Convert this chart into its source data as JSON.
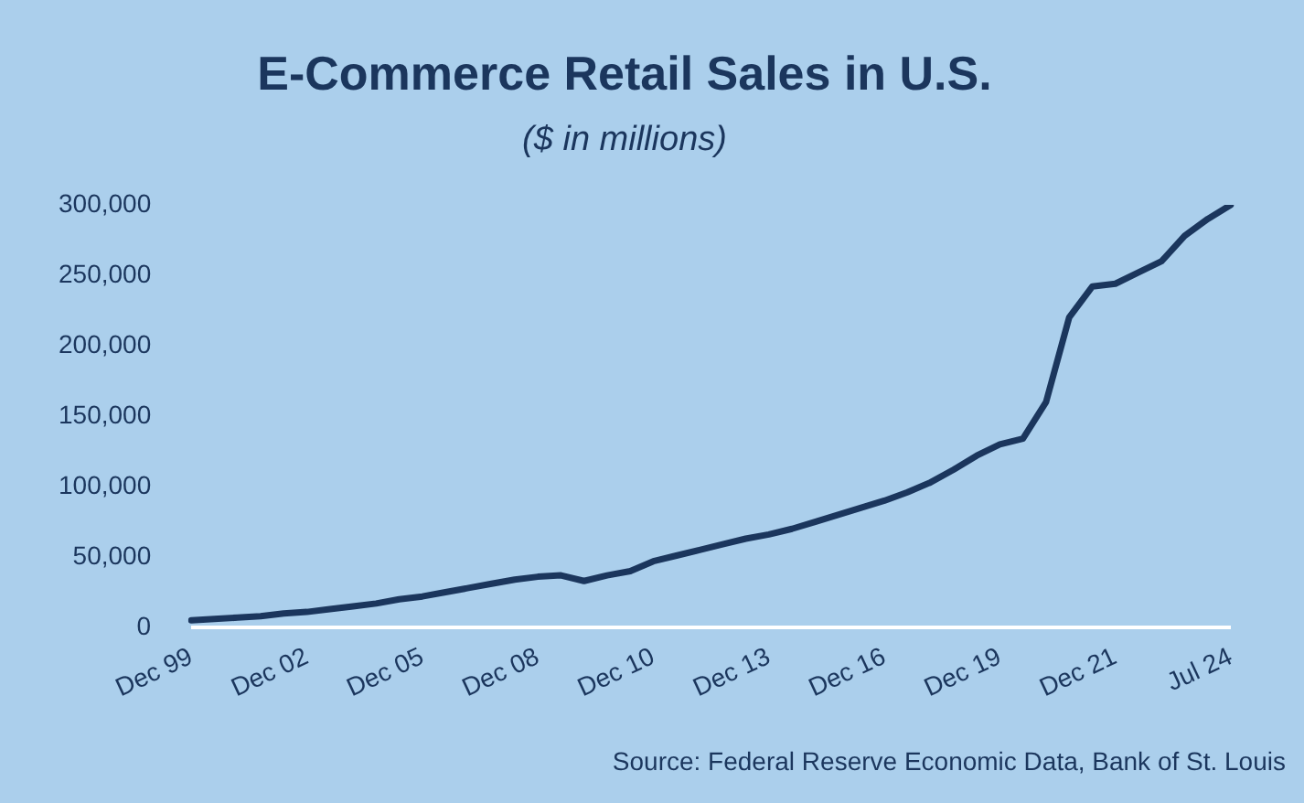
{
  "chart_data": {
    "type": "line",
    "title": "E-Commerce Retail Sales in U.S.",
    "subtitle": "($ in millions)",
    "categories": [
      "Dec 99",
      null,
      null,
      null,
      null,
      "Dec 02",
      null,
      null,
      null,
      null,
      "Dec 05",
      null,
      null,
      null,
      null,
      "Dec 08",
      null,
      null,
      null,
      null,
      "Dec 10",
      null,
      null,
      null,
      null,
      "Dec 13",
      null,
      null,
      null,
      null,
      "Dec 16",
      null,
      null,
      null,
      null,
      "Dec 19",
      null,
      null,
      null,
      null,
      "Dec 21",
      null,
      null,
      null,
      null,
      "Jul 24"
    ],
    "series": [
      {
        "color": "#1b365d",
        "values": [
          5000,
          6000,
          7000,
          8000,
          10000,
          11000,
          13000,
          15000,
          17000,
          20000,
          22000,
          25000,
          28000,
          31000,
          34000,
          36000,
          37000,
          33000,
          37000,
          40000,
          47000,
          51000,
          55000,
          59000,
          63000,
          66000,
          70000,
          75000,
          80000,
          85000,
          90000,
          96000,
          103000,
          112000,
          122000,
          130000,
          134000,
          160000,
          220000,
          242000,
          244000,
          252000,
          260000,
          278000,
          290000,
          300000
        ]
      }
    ],
    "ylim": [
      0,
      300000
    ],
    "yticks": [
      {
        "value": 0,
        "label": "0"
      },
      {
        "value": 50000,
        "label": "50,000"
      },
      {
        "value": 100000,
        "label": "100,000"
      },
      {
        "value": 150000,
        "label": "150,000"
      },
      {
        "value": 200000,
        "label": "200,000"
      },
      {
        "value": 250000,
        "label": "250,000"
      },
      {
        "value": 300000,
        "label": "300,000"
      }
    ],
    "grid": false,
    "legend": false,
    "marker": "none",
    "line_style": "solid",
    "annotations": [
      "Source: Federal Reserve Economic Data, Bank of St. Louis"
    ]
  }
}
